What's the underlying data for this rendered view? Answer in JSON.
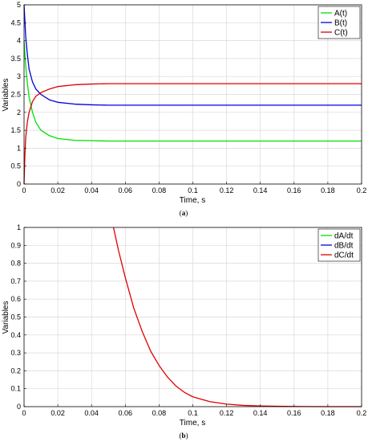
{
  "chart_data": [
    {
      "type": "line",
      "caption_prefix": "(",
      "caption_letter": "a",
      "caption_suffix": ")",
      "xlabel": "Time, s",
      "ylabel": "Variables",
      "xlim": [
        0,
        0.2
      ],
      "ylim": [
        0,
        5
      ],
      "xticks": [
        "0",
        "0.02",
        "0.04",
        "0.06",
        "0.08",
        "0.1",
        "0.12",
        "0.14",
        "0.16",
        "0.18",
        "0.2"
      ],
      "yticks": [
        "0",
        "0.5",
        "1",
        "1.5",
        "2",
        "2.5",
        "3",
        "3.5",
        "4",
        "4.5",
        "5"
      ],
      "grid": true,
      "legend_position": "top-right",
      "series": [
        {
          "name": "A(t)",
          "color": "#00e000",
          "x": [
            0,
            0.001,
            0.002,
            0.003,
            0.005,
            0.007,
            0.01,
            0.015,
            0.02,
            0.03,
            0.04,
            0.05,
            0.06,
            0.08,
            0.1,
            0.12,
            0.15,
            0.2
          ],
          "y": [
            4.0,
            3.3,
            2.8,
            2.42,
            2.0,
            1.72,
            1.5,
            1.35,
            1.27,
            1.22,
            1.21,
            1.2,
            1.2,
            1.2,
            1.2,
            1.2,
            1.2,
            1.2
          ]
        },
        {
          "name": "B(t)",
          "color": "#0000e0",
          "x": [
            0,
            0.001,
            0.002,
            0.003,
            0.005,
            0.007,
            0.01,
            0.015,
            0.02,
            0.03,
            0.04,
            0.05,
            0.06,
            0.08,
            0.1,
            0.12,
            0.15,
            0.2
          ],
          "y": [
            5.0,
            4.1,
            3.6,
            3.2,
            2.85,
            2.65,
            2.5,
            2.35,
            2.28,
            2.23,
            2.21,
            2.2,
            2.2,
            2.2,
            2.2,
            2.2,
            2.2,
            2.2
          ]
        },
        {
          "name": "C(t)",
          "color": "#e00000",
          "x": [
            0,
            0.0005,
            0.001,
            0.002,
            0.003,
            0.005,
            0.007,
            0.01,
            0.015,
            0.02,
            0.03,
            0.04,
            0.05,
            0.06,
            0.08,
            0.1,
            0.12,
            0.15,
            0.2
          ],
          "y": [
            0,
            0.8,
            1.3,
            1.75,
            2.0,
            2.3,
            2.45,
            2.55,
            2.65,
            2.72,
            2.77,
            2.79,
            2.8,
            2.8,
            2.8,
            2.8,
            2.8,
            2.8,
            2.8
          ]
        }
      ]
    },
    {
      "type": "line",
      "caption_prefix": "(",
      "caption_letter": "b",
      "caption_suffix": ")",
      "xlabel": "Time, s",
      "ylabel": "Variables",
      "xlim": [
        0,
        0.2
      ],
      "ylim": [
        0,
        1
      ],
      "xticks": [
        "0",
        "0.02",
        "0.04",
        "0.06",
        "0.08",
        "0.1",
        "0.12",
        "0.14",
        "0.16",
        "0.18",
        "0.2"
      ],
      "yticks": [
        "0",
        "0.1",
        "0.2",
        "0.3",
        "0.4",
        "0.5",
        "0.6",
        "0.7",
        "0.8",
        "0.9",
        "1"
      ],
      "grid": true,
      "legend_position": "top-right",
      "series": [
        {
          "name": "dA/dt",
          "color": "#00e000",
          "x": [],
          "y": []
        },
        {
          "name": "dB/dt",
          "color": "#0000e0",
          "x": [],
          "y": []
        },
        {
          "name": "dC/dt",
          "color": "#e00000",
          "x": [
            0.053,
            0.056,
            0.06,
            0.065,
            0.07,
            0.075,
            0.08,
            0.085,
            0.09,
            0.095,
            0.1,
            0.11,
            0.12,
            0.13,
            0.14,
            0.15,
            0.16,
            0.18,
            0.2
          ],
          "y": [
            1.0,
            0.87,
            0.72,
            0.55,
            0.42,
            0.31,
            0.23,
            0.165,
            0.115,
            0.08,
            0.055,
            0.028,
            0.014,
            0.007,
            0.004,
            0.002,
            0.001,
            0.0,
            0.0
          ]
        }
      ]
    }
  ]
}
